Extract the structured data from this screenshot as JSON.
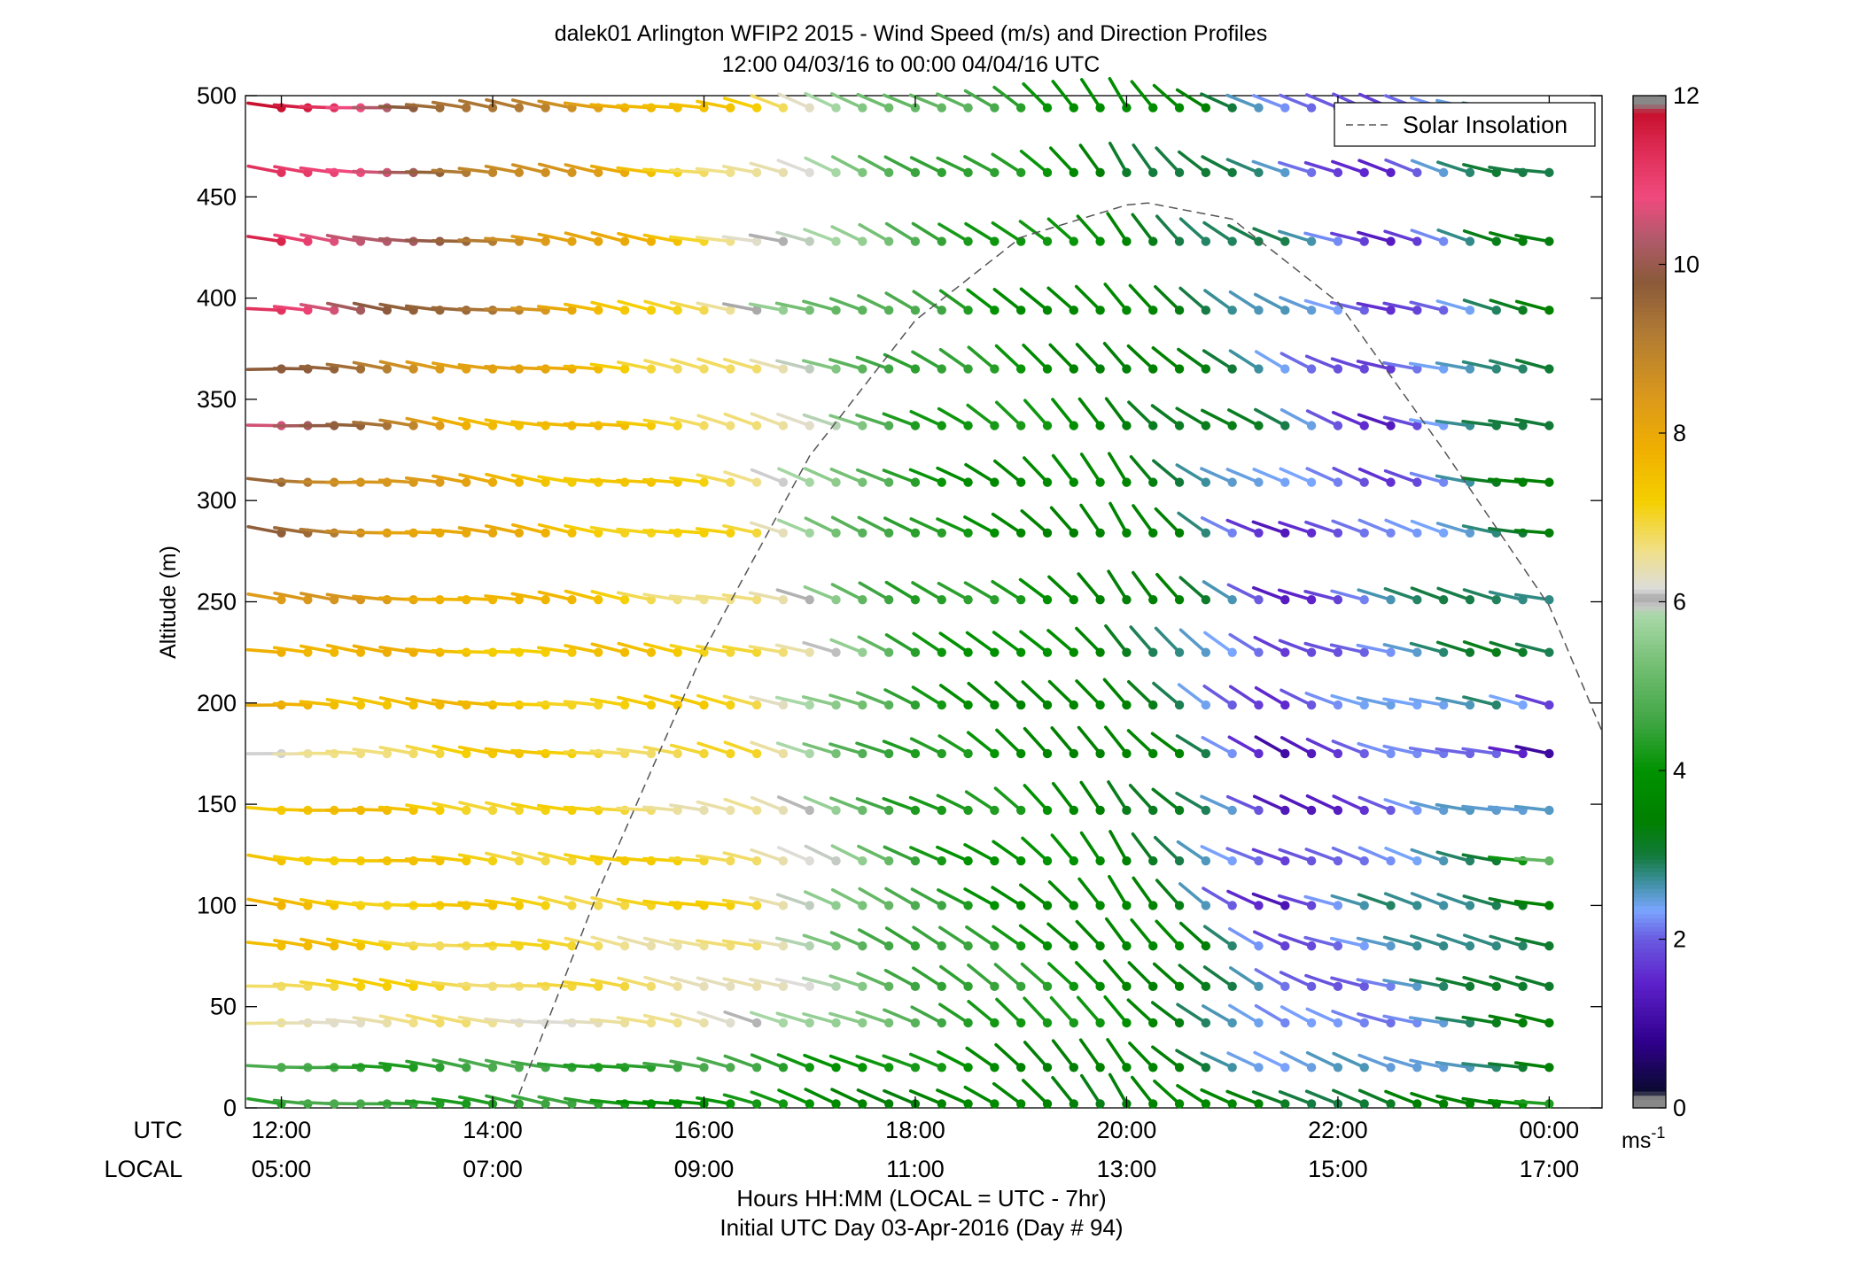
{
  "title": {
    "line1": "dalek01 Arlington WFIP2 2015 - Wind Speed (m/s) and Direction Profiles",
    "line2": "12:00 04/03/16 to 00:00 04/04/16  UTC"
  },
  "axes": {
    "ylabel": "Altitude (m)",
    "xlabel_line1": "Hours HH:MM  (LOCAL = UTC - 7hr)",
    "xlabel_line2": "Initial UTC Day 03-Apr-2016 (Day # 94)",
    "utc_row_label": "UTC",
    "local_row_label": "LOCAL",
    "colorbar_unit_base": "ms",
    "colorbar_unit_exp": "-1"
  },
  "legend": {
    "label": "Solar Insolation",
    "placement": "top-right"
  },
  "chart_data": {
    "type": "scatter",
    "subtype": "wind-barb profiles (dot at observation, stick pointing toward wind origin, colored by speed)",
    "x_ticks_utc": [
      "12:00",
      "14:00",
      "16:00",
      "18:00",
      "20:00",
      "22:00",
      "00:00"
    ],
    "x_ticks_local": [
      "05:00",
      "07:00",
      "09:00",
      "11:00",
      "13:00",
      "15:00",
      "17:00"
    ],
    "x_tick_hours": [
      12,
      14,
      16,
      18,
      20,
      22,
      24
    ],
    "xlim_hours_utc": [
      11.66,
      24.5
    ],
    "ylim": [
      0,
      500
    ],
    "y_ticks": [
      0,
      50,
      100,
      150,
      200,
      250,
      300,
      350,
      400,
      450,
      500
    ],
    "grid": false,
    "altitudes_m": [
      2,
      20,
      42,
      60,
      80,
      100,
      122,
      147,
      175,
      199,
      225,
      251,
      284,
      309,
      337,
      365,
      394,
      428,
      462,
      494
    ],
    "time_step_hours": 0.25,
    "first_time_hour": 12,
    "last_time_hour": 24,
    "speed_keyframes_hours": [
      12,
      13.67,
      16.5,
      18,
      20.5,
      21.5,
      22.5,
      23.5,
      24
    ],
    "speed_keyframes_ms": [
      [
        4.5,
        4.5,
        4.0,
        3.5,
        3.5,
        3.3,
        3.0,
        3.5,
        4.5
      ],
      [
        4.5,
        4.5,
        4.5,
        4.0,
        3.2,
        2.5,
        2.3,
        3.0,
        3.2
      ],
      [
        6.5,
        6.5,
        6.3,
        4.8,
        3.5,
        2.0,
        2.3,
        3.0,
        3.2
      ],
      [
        7.0,
        7.0,
        6.5,
        4.8,
        3.5,
        2.0,
        2.3,
        3.0,
        3.3
      ],
      [
        7.5,
        7.0,
        6.5,
        4.5,
        3.5,
        2.0,
        2.3,
        3.0,
        3.2
      ],
      [
        7.5,
        7.2,
        7.0,
        4.5,
        3.2,
        1.3,
        2.8,
        3.0,
        3.2
      ],
      [
        7.5,
        7.2,
        7.0,
        4.5,
        3.2,
        1.5,
        2.5,
        2.8,
        5.0
      ],
      [
        7.5,
        7.3,
        6.5,
        4.5,
        3.2,
        1.3,
        2.0,
        2.5,
        2.8
      ],
      [
        6.0,
        7.3,
        6.8,
        4.2,
        3.3,
        1.3,
        2.0,
        2.3,
        1.0
      ],
      [
        7.8,
        7.5,
        7.0,
        4.2,
        3.0,
        1.5,
        2.5,
        2.8,
        1.5
      ],
      [
        8.0,
        7.5,
        7.2,
        4.5,
        3.0,
        1.5,
        2.5,
        3.0,
        3.0
      ],
      [
        8.5,
        8.0,
        6.5,
        4.5,
        3.3,
        1.5,
        2.5,
        3.0,
        3.0
      ],
      [
        9.5,
        8.0,
        6.8,
        4.2,
        3.2,
        1.5,
        2.0,
        3.0,
        3.2
      ],
      [
        9.5,
        8.0,
        6.8,
        4.2,
        3.2,
        2.2,
        1.8,
        3.0,
        3.2
      ],
      [
        10.8,
        8.0,
        6.8,
        4.5,
        3.3,
        2.8,
        1.5,
        2.8,
        3.2
      ],
      [
        9.8,
        8.5,
        6.5,
        4.5,
        3.2,
        2.6,
        1.5,
        3.0,
        3.2
      ],
      [
        11.0,
        9.5,
        6.0,
        4.5,
        3.2,
        2.7,
        1.5,
        3.0,
        3.2
      ],
      [
        11.5,
        9.5,
        6.5,
        4.8,
        3.2,
        2.7,
        1.6,
        3.0,
        3.2
      ],
      [
        11.5,
        9.5,
        6.5,
        4.8,
        3.0,
        2.5,
        1.5,
        3.0,
        3.2
      ],
      [
        11.7,
        9.5,
        7.0,
        5.0,
        3.5,
        2.5,
        1.5,
        3.0,
        3.2
      ]
    ],
    "direction_keyframes_hours": [
      12,
      16,
      18.5,
      20,
      21,
      22,
      24
    ],
    "direction_from_deg": [
      275,
      280,
      300,
      325,
      300,
      290,
      280
    ],
    "colorbar": {
      "range_ms": [
        0,
        12
      ],
      "ticks": [
        0,
        2,
        4,
        6,
        8,
        10,
        12
      ],
      "stops": [
        {
          "v": 0.0,
          "c": "#888888"
        },
        {
          "v": 0.12,
          "c": "#888888"
        },
        {
          "v": 0.2,
          "c": "#0a0a30"
        },
        {
          "v": 0.8,
          "c": "#30008e"
        },
        {
          "v": 1.5,
          "c": "#5e22cc"
        },
        {
          "v": 2.0,
          "c": "#6a5ae0"
        },
        {
          "v": 2.35,
          "c": "#7aa6ff"
        },
        {
          "v": 2.7,
          "c": "#3a8f9a"
        },
        {
          "v": 3.0,
          "c": "#127a3a"
        },
        {
          "v": 3.4,
          "c": "#008000"
        },
        {
          "v": 4.0,
          "c": "#009200"
        },
        {
          "v": 4.6,
          "c": "#41a645"
        },
        {
          "v": 5.2,
          "c": "#6fbd6f"
        },
        {
          "v": 5.85,
          "c": "#a9d8a8"
        },
        {
          "v": 5.95,
          "c": "#c8c8c8"
        },
        {
          "v": 6.05,
          "c": "#a8a8a8"
        },
        {
          "v": 6.15,
          "c": "#dcdcdc"
        },
        {
          "v": 6.6,
          "c": "#f0e08a"
        },
        {
          "v": 7.2,
          "c": "#f5cf00"
        },
        {
          "v": 7.8,
          "c": "#f0b000"
        },
        {
          "v": 8.4,
          "c": "#dc9a1a"
        },
        {
          "v": 9.2,
          "c": "#b07a34"
        },
        {
          "v": 9.8,
          "c": "#8a5a3a"
        },
        {
          "v": 10.3,
          "c": "#b05a6a"
        },
        {
          "v": 10.8,
          "c": "#f04a7e"
        },
        {
          "v": 11.3,
          "c": "#e0305a"
        },
        {
          "v": 11.8,
          "c": "#c8102e"
        },
        {
          "v": 11.9,
          "c": "#888888"
        },
        {
          "v": 12.0,
          "c": "#888888"
        }
      ]
    },
    "solar_insolation_curve": {
      "style": "dashed",
      "color": "#555555",
      "x_hours": [
        14.2,
        15.0,
        16.0,
        17.0,
        18.0,
        19.0,
        20.0,
        20.2,
        21.0,
        22.0,
        23.0,
        24.0,
        24.5
      ],
      "y_axis_units": [
        0,
        107,
        226,
        322,
        389,
        430,
        446,
        447,
        439,
        398,
        325,
        248,
        186
      ]
    }
  }
}
